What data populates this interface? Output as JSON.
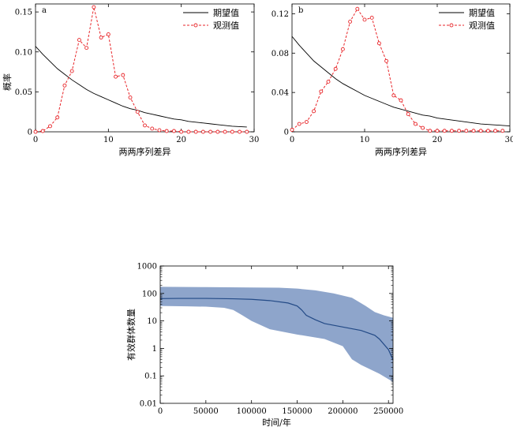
{
  "chart_data": [
    {
      "type": "line",
      "panel_label": "a",
      "xlabel": "两两序列差异",
      "ylabel": "概率",
      "xlim": [
        0,
        30
      ],
      "ylim": [
        0,
        0.16
      ],
      "xticks": [
        0,
        10,
        20,
        30
      ],
      "yticks": [
        0,
        0.05,
        0.1,
        0.15
      ],
      "ytick_labels": [
        "0",
        "0.05",
        "0.10",
        "0.15"
      ],
      "legend_position": "top-right",
      "series": [
        {
          "name": "期望值",
          "style": "solid",
          "color": "#000000",
          "x": [
            0,
            1,
            2,
            3,
            4,
            5,
            6,
            7,
            8,
            9,
            10,
            11,
            12,
            13,
            14,
            15,
            16,
            17,
            18,
            19,
            20,
            21,
            22,
            23,
            24,
            25,
            26,
            27,
            28,
            29
          ],
          "y": [
            0.107,
            0.097,
            0.088,
            0.079,
            0.072,
            0.065,
            0.059,
            0.053,
            0.048,
            0.044,
            0.04,
            0.036,
            0.032,
            0.029,
            0.027,
            0.024,
            0.022,
            0.02,
            0.018,
            0.016,
            0.015,
            0.013,
            0.012,
            0.011,
            0.01,
            0.009,
            0.008,
            0.007,
            0.0065,
            0.006
          ]
        },
        {
          "name": "观测值",
          "style": "dashed",
          "marker": "circle",
          "color": "#e8262a",
          "x": [
            0,
            1,
            2,
            3,
            4,
            5,
            6,
            7,
            8,
            9,
            10,
            11,
            12,
            13,
            14,
            15,
            16,
            17,
            18,
            19,
            20,
            21,
            22,
            23,
            24,
            25,
            26,
            27,
            28,
            29
          ],
          "y": [
            0.0,
            0.001,
            0.007,
            0.018,
            0.058,
            0.076,
            0.115,
            0.105,
            0.156,
            0.118,
            0.122,
            0.069,
            0.071,
            0.043,
            0.025,
            0.008,
            0.004,
            0.002,
            0.001,
            0.001,
            0.0,
            0.0,
            0.0,
            0.0,
            0.0,
            0.0,
            0.0,
            0.0,
            0.0,
            0.0
          ]
        }
      ]
    },
    {
      "type": "line",
      "panel_label": "b",
      "xlabel": "两两序列差异",
      "ylabel": "",
      "xlim": [
        0,
        30
      ],
      "ylim": [
        0,
        0.13
      ],
      "xticks": [
        0,
        10,
        20,
        30
      ],
      "yticks": [
        0,
        0.04,
        0.08,
        0.12
      ],
      "ytick_labels": [
        "0",
        "0.04",
        "0.08",
        "0.12"
      ],
      "legend_position": "top-right",
      "series": [
        {
          "name": "期望值",
          "style": "solid",
          "color": "#000000",
          "x": [
            0,
            1,
            2,
            3,
            4,
            5,
            6,
            7,
            8,
            9,
            10,
            11,
            12,
            13,
            14,
            15,
            16,
            17,
            18,
            19,
            20,
            21,
            22,
            23,
            24,
            25,
            26,
            27,
            28,
            29,
            30
          ],
          "y": [
            0.097,
            0.088,
            0.08,
            0.072,
            0.066,
            0.06,
            0.054,
            0.049,
            0.045,
            0.041,
            0.037,
            0.034,
            0.031,
            0.028,
            0.025,
            0.023,
            0.021,
            0.019,
            0.017,
            0.016,
            0.014,
            0.013,
            0.012,
            0.011,
            0.01,
            0.009,
            0.008,
            0.0075,
            0.007,
            0.0065,
            0.006
          ]
        },
        {
          "name": "观测值",
          "style": "dashed",
          "marker": "circle",
          "color": "#e8262a",
          "x": [
            0,
            1,
            2,
            3,
            4,
            5,
            6,
            7,
            8,
            9,
            10,
            11,
            12,
            13,
            14,
            15,
            16,
            17,
            18,
            19,
            20,
            21,
            22,
            23,
            24,
            25,
            26,
            27,
            28,
            29
          ],
          "y": [
            0.002,
            0.008,
            0.01,
            0.021,
            0.041,
            0.051,
            0.064,
            0.084,
            0.112,
            0.125,
            0.114,
            0.116,
            0.09,
            0.072,
            0.037,
            0.032,
            0.018,
            0.008,
            0.004,
            0.001,
            0.001,
            0.001,
            0.001,
            0.001,
            0.001,
            0.001,
            0.001,
            0.001,
            0.001,
            0.001
          ]
        }
      ]
    },
    {
      "type": "area",
      "xlabel": "时间/年",
      "ylabel": "有效群体数量",
      "xlim": [
        0,
        255000
      ],
      "ylim": [
        0.01,
        1000
      ],
      "yscale": "log",
      "xticks": [
        0,
        50000,
        100000,
        150000,
        200000,
        250000
      ],
      "xtick_labels": [
        "0",
        "50000",
        "100000",
        "150000",
        "200000",
        "250000"
      ],
      "yticks": [
        0.01,
        0.1,
        1,
        10,
        100,
        1000
      ],
      "ytick_labels": [
        "0.01",
        "0.1",
        "1",
        "10",
        "100",
        "1000"
      ],
      "band_color": "#8ea5cb",
      "line_color": "#234a86",
      "median": {
        "x": [
          0,
          20000,
          50000,
          80000,
          100000,
          120000,
          140000,
          150000,
          155000,
          160000,
          170000,
          180000,
          200000,
          220000,
          235000,
          240000,
          250000,
          255000
        ],
        "y": [
          65,
          66,
          66,
          64,
          61,
          55,
          45,
          35,
          25,
          16,
          11,
          8,
          6,
          4.5,
          3,
          2.2,
          0.9,
          0.38
        ]
      },
      "upper": {
        "x": [
          0,
          50000,
          100000,
          130000,
          150000,
          170000,
          190000,
          210000,
          225000,
          235000,
          245000,
          255000
        ],
        "y": [
          175,
          170,
          165,
          162,
          150,
          130,
          100,
          70,
          35,
          21,
          16,
          13
        ]
      },
      "lower": {
        "x": [
          0,
          30000,
          50000,
          70000,
          80000,
          90000,
          100000,
          120000,
          150000,
          180000,
          200000,
          210000,
          220000,
          240000,
          255000
        ],
        "y": [
          35,
          34,
          33,
          30,
          25,
          16,
          10,
          5,
          3.2,
          2.2,
          1.2,
          0.4,
          0.25,
          0.12,
          0.06
        ]
      }
    }
  ]
}
